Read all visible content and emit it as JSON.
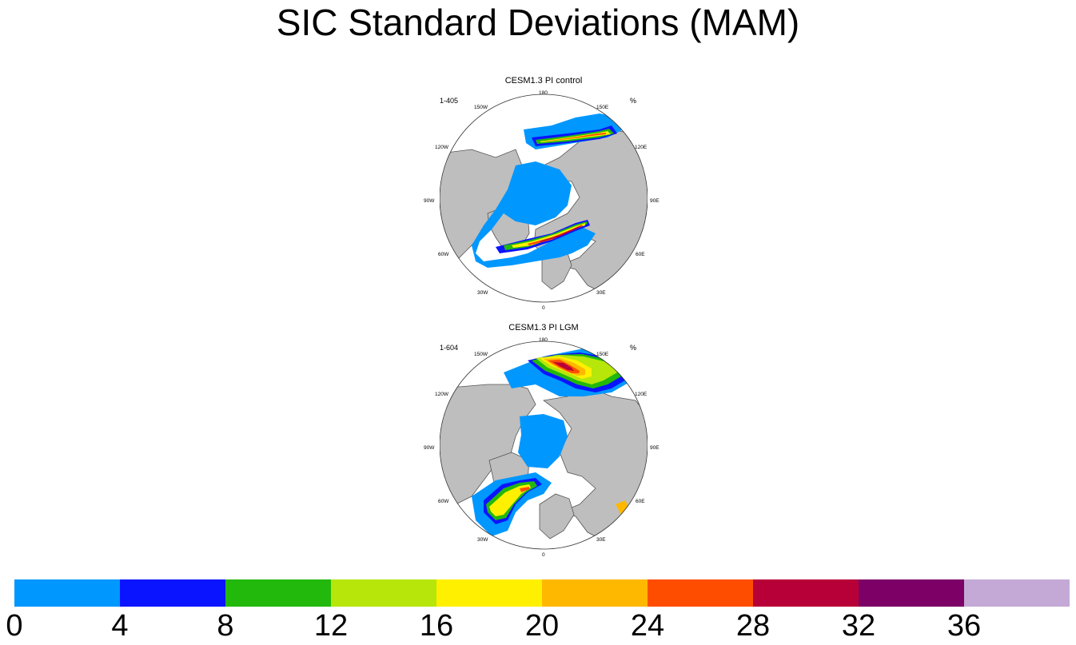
{
  "figure": {
    "title": "SIC Standard Deviations (MAM)"
  },
  "panels": [
    {
      "title": "CESM1.3 PI control",
      "subtitle": "1-405",
      "units": "%",
      "lon_labels": [
        "180",
        "150E",
        "120E",
        "90E",
        "60E",
        "30E",
        "0",
        "30W",
        "60W",
        "90W",
        "120W",
        "150W"
      ]
    },
    {
      "title": "CESM1.3 PI LGM",
      "subtitle": "1-604",
      "units": "%",
      "lon_labels": [
        "180",
        "150E",
        "120E",
        "90E",
        "60E",
        "30E",
        "0",
        "30W",
        "60W",
        "90W",
        "120W",
        "150W"
      ]
    }
  ],
  "colorbar": {
    "levels": [
      "0",
      "4",
      "8",
      "12",
      "16",
      "20",
      "24",
      "28",
      "32",
      "36"
    ],
    "colors": [
      "#0097ff",
      "#0a14ff",
      "#22b80c",
      "#b6e60a",
      "#fff000",
      "#ffb800",
      "#ff4d00",
      "#b80038",
      "#7d0066",
      "#c4a9d6"
    ]
  },
  "colors": {
    "land": "#bebebe",
    "ocean": "#ffffff",
    "outline": "#555555"
  }
}
